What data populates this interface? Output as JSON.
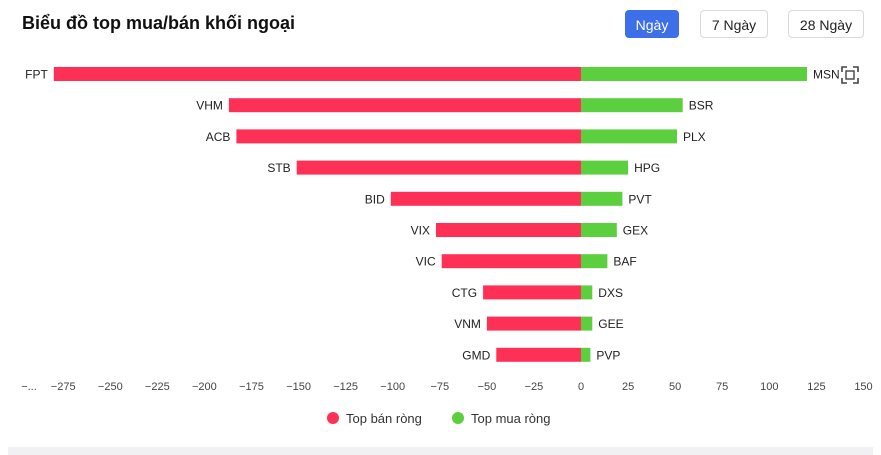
{
  "title": "Biểu đồ top mua/bán khối ngoại",
  "period_buttons": [
    {
      "label": "Ngày",
      "active": true
    },
    {
      "label": "7 Ngày",
      "active": false
    },
    {
      "label": "28 Ngày",
      "active": false
    }
  ],
  "icons": {
    "expand": "expand-icon"
  },
  "colors": {
    "sell": "#ff3056",
    "buy": "#5ccf3f"
  },
  "chart_data": {
    "type": "bar",
    "orientation": "horizontal",
    "title": "",
    "xlabel": "",
    "ylabel": "",
    "xlim": [
      -300,
      150
    ],
    "x_ticks": [
      "−...",
      "−275",
      "−250",
      "−225",
      "−200",
      "−175",
      "−150",
      "−125",
      "−100",
      "−75",
      "−50",
      "−25",
      "0",
      "25",
      "50",
      "75",
      "100",
      "125",
      "150"
    ],
    "grid": false,
    "legend_position": "bottom",
    "series": [
      {
        "name": "Top bán ròng",
        "categories": [
          "FPT",
          "VHM",
          "ACB",
          "STB",
          "BID",
          "VIX",
          "VIC",
          "CTG",
          "VNM",
          "GMD"
        ],
        "values": [
          -280,
          -187,
          -183,
          -151,
          -101,
          -77,
          -74,
          -52,
          -50,
          -45
        ]
      },
      {
        "name": "Top mua ròng",
        "categories": [
          "MSN",
          "BSR",
          "PLX",
          "HPG",
          "PVT",
          "GEX",
          "BAF",
          "DXS",
          "GEE",
          "PVP"
        ],
        "values": [
          120,
          54,
          51,
          25,
          22,
          19,
          14,
          6,
          6,
          5
        ]
      }
    ]
  }
}
